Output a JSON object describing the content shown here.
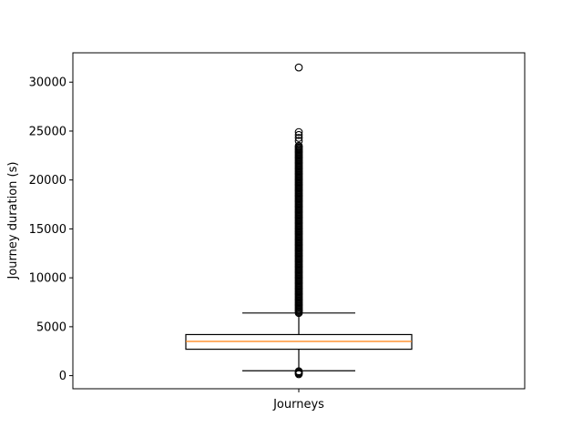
{
  "chart_data": {
    "type": "box",
    "title": "",
    "xlabel": "",
    "ylabel": "Journey duration (s)",
    "categories": [
      "Journeys"
    ],
    "ylim": [
      -1340,
      33000
    ],
    "yticks": [
      0,
      5000,
      10000,
      15000,
      20000,
      25000,
      30000
    ],
    "grid": false,
    "box": {
      "whisker_low": 500,
      "q1": 2700,
      "median": 3500,
      "q3": 4200,
      "whisker_high": 6400
    },
    "outliers_high_range": [
      6400,
      23500
    ],
    "outliers_high_points": [
      24000,
      24300,
      24600,
      24900,
      31500
    ],
    "outliers_low_points": [
      150,
      250,
      350,
      450
    ],
    "colors": {
      "box": "#000000",
      "median": "#ff7f0e",
      "outlier": "#000000"
    }
  }
}
